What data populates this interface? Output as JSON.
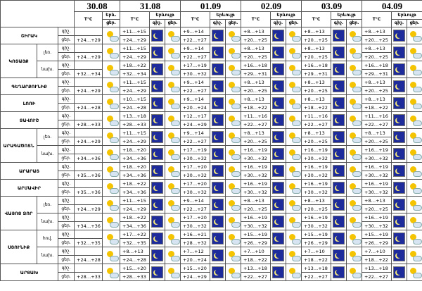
{
  "header": {
    "dates": [
      "30.08",
      "31.08",
      "01.09",
      "02.09",
      "03.09",
      "04.09"
    ],
    "temp_label": "T°C",
    "phen_label": "Երևույթ",
    "first_phen_label": "Երև.",
    "night": "գիշ.",
    "day": "ցեր."
  },
  "regions": [
    {
      "name": "ՇԻՐԱԿ",
      "zones": [
        {
          "first": "+24…+29",
          "night": [
            "+11…+15",
            "+9…+14",
            "+8…+13",
            "+8…+13",
            "+8…+13"
          ],
          "day": [
            "+24…+29",
            "+22…+27",
            "+20…+25",
            "+20…+25",
            "+20…+25"
          ]
        }
      ]
    },
    {
      "name": "ԿՈՏԱՅՔ",
      "zones": [
        {
          "zone": "լեռ.",
          "first": "+24…+29",
          "night": [
            "+11…+15",
            "+9…+14",
            "+8…+13",
            "+8…+13",
            "+8…+13"
          ],
          "day": [
            "+24…+29",
            "+22…+27",
            "+20…+25",
            "+20…+25",
            "+20…+25"
          ]
        },
        {
          "zone": "նախ.",
          "first": "+32…+34",
          "night": [
            "+18…+22",
            "+17…+19",
            "+16…+18",
            "+16…+18",
            "+16…+18"
          ],
          "day": [
            "+32…+34",
            "+30…+32",
            "+29…+31",
            "+29…+31",
            "+29…+31"
          ]
        }
      ]
    },
    {
      "name": "ԳԵՂԱՐՔՈՒՆԻՔ",
      "zones": [
        {
          "first": "+24…+29",
          "night": [
            "+11…+15",
            "+9…+14",
            "+8…+13",
            "+8…+13",
            "+8…+13"
          ],
          "day": [
            "+24…+29",
            "+22…+27",
            "+20…+25",
            "+20…+25",
            "+20…+25"
          ]
        }
      ]
    },
    {
      "name": "ԼՈՌԻ",
      "zones": [
        {
          "first": "+24…+28",
          "night": [
            "+10…+15",
            "+9…+14",
            "+8…+13",
            "+8…+13",
            "+8…+13"
          ],
          "day": [
            "+24…+28",
            "+20…+24",
            "+18…+22",
            "+18…+22",
            "+18…+22"
          ]
        }
      ]
    },
    {
      "name": "ՏԱՎՈՒՇ",
      "zones": [
        {
          "first": "+28…+33",
          "night": [
            "+13…+18",
            "+12…+17",
            "+11…+16",
            "+11…+16",
            "+11…+16"
          ],
          "day": [
            "+28…+33",
            "+24…+29",
            "+22…+27",
            "+22…+27",
            "+22…+27"
          ]
        }
      ]
    },
    {
      "name": "ԱՐԱԳԱԾՈՏՆ",
      "zones": [
        {
          "zone": "լեռ.",
          "first": "+24…+29",
          "night": [
            "+11…+15",
            "+9…+14",
            "+8…+13",
            "+8…+13",
            "+8…+13"
          ],
          "day": [
            "+24…+29",
            "+22…+27",
            "+20…+25",
            "+20…+25",
            "+20…+25"
          ]
        },
        {
          "zone": "նախ.",
          "first": "+34…+36",
          "night": [
            "+18…+20",
            "+17…+19",
            "+16…+19",
            "+16…+19",
            "+16…+19"
          ],
          "day": [
            "+34…+36",
            "+30…+32",
            "+30…+32",
            "+30…+32",
            "+30…+32"
          ]
        }
      ]
    },
    {
      "name": "ԱՐԱՐԱՏ",
      "zones": [
        {
          "first": "+35…+36",
          "night": [
            "+18…+20",
            "+17…+20",
            "+16…+19",
            "+16…+19",
            "+16…+19"
          ],
          "day": [
            "+34…+36",
            "+30…+32",
            "+30…+32",
            "+30…+32",
            "+30…+32"
          ]
        }
      ]
    },
    {
      "name": "ԱՐՄԱՎԻՐ",
      "zones": [
        {
          "first": "+35…+36",
          "night": [
            "+18…+22",
            "+17…+20",
            "+16…+19",
            "+16…+19",
            "+16…+19"
          ],
          "day": [
            "+34…+36",
            "+30…+32",
            "+30…+32",
            "+30…+32",
            "+30…+32"
          ]
        }
      ]
    },
    {
      "name": "ՎԱՅՈՑ ՁՈՐ",
      "zones": [
        {
          "zone": "լեռ.",
          "first": "+24…+29",
          "night": [
            "+11…+15",
            "+9…+14",
            "+8…+13",
            "+8…+13",
            "+8…+13"
          ],
          "day": [
            "+24…+29",
            "+22…+27",
            "+20…+25",
            "+20…+25",
            "+20…+25"
          ]
        },
        {
          "zone": "նախ.",
          "first": "+34…+36",
          "night": [
            "+18…+22",
            "+17…+20",
            "+16…+19",
            "+16…+19",
            "+16…+19"
          ],
          "day": [
            "+34…+36",
            "+30…+32",
            "+30…+32",
            "+30…+32",
            "+30…+32"
          ]
        }
      ]
    },
    {
      "name": "ՍՅՈՒՆԻՔ",
      "zones": [
        {
          "zone": "հով.",
          "first": "+32…+35",
          "night": [
            "+17…+22",
            "+16…+21",
            "+15…+19",
            "+15…+19",
            "+15…+19"
          ],
          "day": [
            "+32…+35",
            "+28…+32",
            "+26…+29",
            "+26…+29",
            "+26…+29"
          ]
        },
        {
          "zone": "նախ.",
          "first": "+24…+28",
          "night": [
            "+8…+13",
            "+7…+12",
            "+7…+10",
            "+7…+10",
            "+7…+10"
          ],
          "day": [
            "+24…+28",
            "+20…+24",
            "+18…+22",
            "+18…+22",
            "+18…+22"
          ]
        }
      ]
    },
    {
      "name": "ԱՐՑԱԽ",
      "zones": [
        {
          "first": "+28…+33",
          "night": [
            "+15…+20",
            "+15…+20",
            "+13…+18",
            "+13…+18",
            "+13…+18"
          ],
          "day": [
            "+28…+33",
            "+24…+29",
            "+22…+27",
            "+22…+27",
            "+22…+27"
          ]
        }
      ]
    }
  ]
}
